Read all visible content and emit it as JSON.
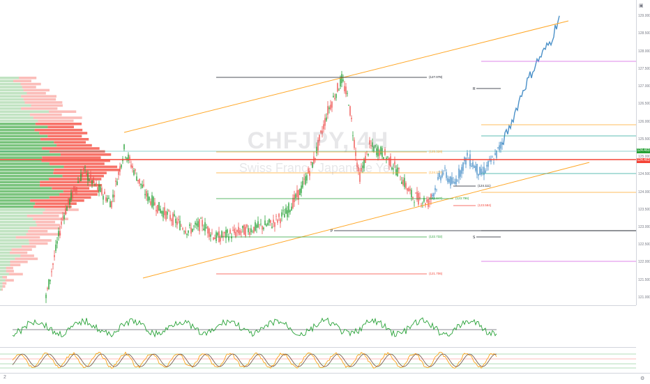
{
  "chart": {
    "title": "CHFJPY, 4H",
    "subtitle": "Swiss Franc / Japanese Yen",
    "current_price": "124.463",
    "price_badges": [
      "124.463",
      "124.463"
    ],
    "colors": {
      "up": "#26a136",
      "down": "#ef5350",
      "projection": "#4a90c8",
      "channel": "#ffa726",
      "resistance": "#f44336",
      "volume_up": "#4caf50",
      "volume_down": "#f44336",
      "magenta": "#d05ce3"
    },
    "levels": [
      {
        "label": "(127.078)",
        "price": 127.078,
        "color": "#131722"
      },
      {
        "label": "(125.328)",
        "price": 125.328,
        "color": "#ffa726"
      },
      {
        "label": "(124.2??)",
        "price": 124.2,
        "color": "#ffa726"
      },
      {
        "label": "(124.111)",
        "price": 124.111,
        "color": "#131722"
      },
      {
        "label": "(123.847)",
        "price": 123.847,
        "color": "#26a136"
      },
      {
        "label": "(123.584)",
        "price": 123.584,
        "color": "#f44336"
      },
      {
        "label": "(123.796)",
        "price": 123.796,
        "color": "#26a136"
      },
      {
        "label": "(122.732)",
        "price": 122.732,
        "color": "#26a136"
      },
      {
        "label": "(121.706)",
        "price": 121.706,
        "color": "#f44336"
      }
    ],
    "markers": [
      "R",
      "P",
      "S"
    ],
    "bottom_left_label": "2",
    "right_icons": [
      "camera-icon",
      "settings-icon"
    ]
  },
  "chart_data": {
    "type": "line",
    "title": "CHFJPY, 4H",
    "subtitle": "Swiss Franc / Japanese Yen",
    "ylim": [
      120.9,
      129.3
    ],
    "series": [
      {
        "name": "",
        "kind": "price",
        "x": [
          0,
          1,
          2,
          3,
          4,
          5,
          6,
          7,
          8,
          9,
          10,
          11,
          12,
          13,
          14,
          15,
          16,
          17,
          18,
          19,
          20,
          21,
          22,
          23,
          24,
          25,
          26,
          27,
          28,
          29,
          30,
          31,
          32,
          33,
          34,
          35,
          36,
          37,
          38,
          39,
          40,
          41,
          42,
          43,
          44,
          45,
          46,
          47,
          48,
          49,
          50,
          51,
          52,
          53,
          54,
          55,
          56,
          57,
          58,
          59,
          60,
          61,
          62,
          63,
          64,
          65,
          66,
          67,
          68,
          69,
          70,
          71,
          72,
          73,
          74,
          75,
          76,
          77,
          78,
          79,
          80,
          81,
          82,
          83,
          84,
          85,
          86,
          87,
          88,
          89,
          90,
          91,
          92,
          93,
          94,
          95,
          96,
          97,
          98,
          99,
          100,
          101,
          102,
          103,
          104,
          105,
          106,
          107,
          108,
          109,
          110,
          111,
          112,
          113,
          114,
          115,
          116,
          117,
          118,
          119,
          120,
          121,
          122,
          123,
          124,
          125,
          126,
          127,
          128,
          129,
          130,
          131,
          132,
          133,
          134,
          135,
          136,
          137,
          138,
          139,
          140,
          141,
          142,
          143,
          144,
          145,
          146,
          147,
          148,
          149,
          150,
          151,
          152,
          153,
          154,
          155,
          156,
          157,
          158,
          159,
          160,
          161,
          162,
          163,
          164,
          165,
          166,
          167,
          168,
          169,
          170,
          171,
          172,
          173,
          174,
          175,
          176,
          177,
          178,
          179,
          180,
          181,
          182,
          183,
          184,
          185,
          186,
          187,
          188,
          189,
          190,
          191,
          192,
          193,
          194,
          195,
          196,
          197,
          198,
          199,
          200,
          201,
          202,
          203,
          204,
          205,
          206,
          207,
          208,
          209,
          210,
          211,
          212,
          213,
          214,
          215,
          216,
          217,
          218,
          219,
          220,
          221,
          222,
          223,
          224,
          225,
          226,
          227,
          228,
          229,
          230,
          231,
          232,
          233,
          234,
          235,
          236,
          237,
          238,
          239,
          240,
          241,
          242,
          243,
          244,
          245,
          246,
          247,
          248,
          249,
          250,
          251,
          252,
          253,
          254,
          255,
          256,
          257,
          258,
          259,
          260,
          261,
          262,
          263,
          264,
          265,
          266,
          267,
          268,
          269,
          270,
          271,
          272,
          273,
          274,
          275,
          276,
          277,
          278,
          279,
          280,
          281,
          282,
          283,
          284,
          285,
          286,
          287,
          288,
          289,
          290,
          291,
          292,
          293,
          294,
          295,
          296,
          297,
          298,
          299,
          300,
          301,
          302,
          303,
          304,
          305,
          306,
          307,
          308,
          309,
          310,
          311,
          312,
          313,
          314,
          315,
          316,
          317,
          318,
          319,
          320,
          321,
          322,
          323,
          324,
          325,
          326,
          327,
          328,
          329,
          330,
          331,
          332,
          333,
          334,
          335,
          336,
          337,
          338,
          339,
          340,
          341,
          342,
          343,
          344,
          345,
          346,
          347,
          348,
          349,
          350,
          351,
          352,
          353,
          354,
          355,
          356,
          357,
          358,
          359,
          360,
          361,
          362,
          363,
          364,
          365,
          366,
          367,
          368,
          369,
          370,
          371,
          372,
          373,
          374,
          375,
          376,
          377,
          378,
          379,
          380,
          381,
          382,
          383,
          384,
          385,
          386,
          387,
          388,
          389,
          390,
          391,
          392,
          393,
          394,
          395,
          396,
          397,
          398,
          399,
          400,
          401,
          402,
          403,
          404,
          405,
          406,
          407,
          408,
          409,
          410,
          411,
          412,
          413,
          414,
          415,
          416,
          417,
          418,
          419,
          420,
          421,
          422,
          423,
          424,
          425,
          426,
          427,
          428,
          429,
          430,
          431,
          432,
          433,
          434,
          435,
          436,
          437,
          438,
          439,
          440,
          441,
          442,
          443,
          444,
          445,
          446,
          447,
          448,
          449,
          450,
          451,
          452,
          453,
          454,
          455,
          456,
          457,
          458,
          459,
          460,
          461,
          462,
          463,
          464,
          465,
          466,
          467,
          468,
          469,
          470,
          471,
          472,
          473,
          474,
          475,
          476,
          477,
          478,
          479,
          480,
          481,
          482,
          483,
          484,
          485,
          486,
          487,
          488,
          489,
          490,
          491,
          492,
          493,
          494,
          495,
          496,
          497,
          498,
          499,
          500,
          501,
          502,
          503,
          504,
          505,
          506,
          507,
          508,
          509,
          510,
          511,
          512,
          513,
          514,
          515,
          516,
          517,
          518,
          519,
          520,
          521,
          522,
          523,
          524,
          525,
          526,
          527,
          528,
          529,
          530,
          531,
          532,
          533,
          534,
          535,
          536,
          537,
          538,
          539,
          540,
          541,
          542,
          543,
          544,
          545,
          546,
          547,
          548,
          549,
          550,
          551,
          552,
          553,
          554,
          555,
          556,
          557,
          558,
          559,
          560,
          561,
          562,
          563,
          564,
          565,
          566,
          567,
          568,
          569,
          570,
          571,
          572,
          573,
          574,
          575,
          576,
          577,
          578,
          579,
          580,
          581,
          582,
          583,
          584,
          585,
          586,
          587,
          588,
          589,
          590,
          591,
          592,
          593,
          594,
          595,
          596,
          597,
          598,
          599,
          600,
          601,
          602,
          603,
          604,
          605,
          606,
          607,
          608,
          609,
          610,
          611,
          612,
          613,
          614,
          615,
          616,
          617,
          618,
          619,
          620,
          621,
          622,
          623,
          624,
          625,
          626,
          627,
          628,
          629,
          630,
          631,
          632,
          633,
          634,
          635,
          636,
          637,
          638,
          639,
          640,
          641,
          642,
          643,
          644,
          645,
          646,
          647,
          648,
          649,
          650,
          651,
          652,
          653,
          654,
          655,
          656,
          657,
          658,
          659,
          660,
          661,
          662,
          663,
          664,
          665,
          666,
          667,
          668,
          669,
          670,
          671,
          672,
          673,
          674,
          675,
          676,
          677,
          678,
          679,
          680,
          681,
          682,
          683,
          684,
          685,
          686,
          687,
          688,
          689,
          690,
          691,
          692,
          693,
          694,
          695,
          696,
          697,
          698,
          699,
          700,
          701,
          702,
          703,
          704,
          705,
          706,
          707,
          708,
          709,
          710,
          711,
          712,
          713,
          714,
          715,
          716,
          717,
          718,
          719,
          720,
          721,
          722,
          723,
          724,
          725,
          726,
          727,
          728,
          729,
          730,
          731,
          732,
          733,
          734,
          735,
          736,
          737,
          738,
          739,
          740,
          741,
          742,
          743,
          744,
          745,
          746,
          747,
          748,
          749,
          750,
          751,
          752,
          753,
          754,
          755,
          756,
          757,
          758,
          759,
          760,
          761,
          762,
          763,
          764,
          765,
          766,
          767,
          768,
          769,
          770,
          771,
          772,
          773,
          774,
          775,
          776,
          777,
          778,
          779,
          780,
          781,
          782,
          783,
          784,
          785,
          786,
          787,
          788,
          789,
          790,
          791,
          792,
          793,
          794,
          795,
          796,
          797,
          798,
          799,
          800,
          801,
          802
        ],
        "y_keypoints": [
          [
            66,
            121.0
          ],
          [
            90,
            123.3
          ],
          [
            110,
            124.2
          ],
          [
            120,
            124.6
          ],
          [
            140,
            124.1
          ],
          [
            160,
            123.7
          ],
          [
            178,
            125.2
          ],
          [
            195,
            124.5
          ],
          [
            210,
            123.9
          ],
          [
            230,
            123.5
          ],
          [
            250,
            123.2
          ],
          [
            270,
            122.9
          ],
          [
            290,
            123.1
          ],
          [
            310,
            122.7
          ],
          [
            330,
            122.8
          ],
          [
            350,
            122.9
          ],
          [
            370,
            123.0
          ],
          [
            390,
            123.1
          ],
          [
            410,
            123.4
          ],
          [
            430,
            124.0
          ],
          [
            450,
            124.9
          ],
          [
            470,
            126.3
          ],
          [
            490,
            127.2
          ],
          [
            500,
            126.6
          ],
          [
            515,
            124.4
          ],
          [
            530,
            125.3
          ],
          [
            550,
            125.1
          ],
          [
            570,
            124.6
          ],
          [
            590,
            123.9
          ],
          [
            615,
            123.7
          ],
          [
            635,
            124.6
          ],
          [
            650,
            124.2
          ],
          [
            670,
            125.0
          ],
          [
            690,
            124.5
          ],
          [
            710,
            125.0
          ],
          [
            730,
            125.8
          ],
          [
            750,
            126.9
          ],
          [
            770,
            127.7
          ],
          [
            790,
            128.3
          ],
          [
            802,
            129.0
          ]
        ]
      }
    ],
    "annotations": [
      "R",
      "P",
      "S"
    ]
  }
}
